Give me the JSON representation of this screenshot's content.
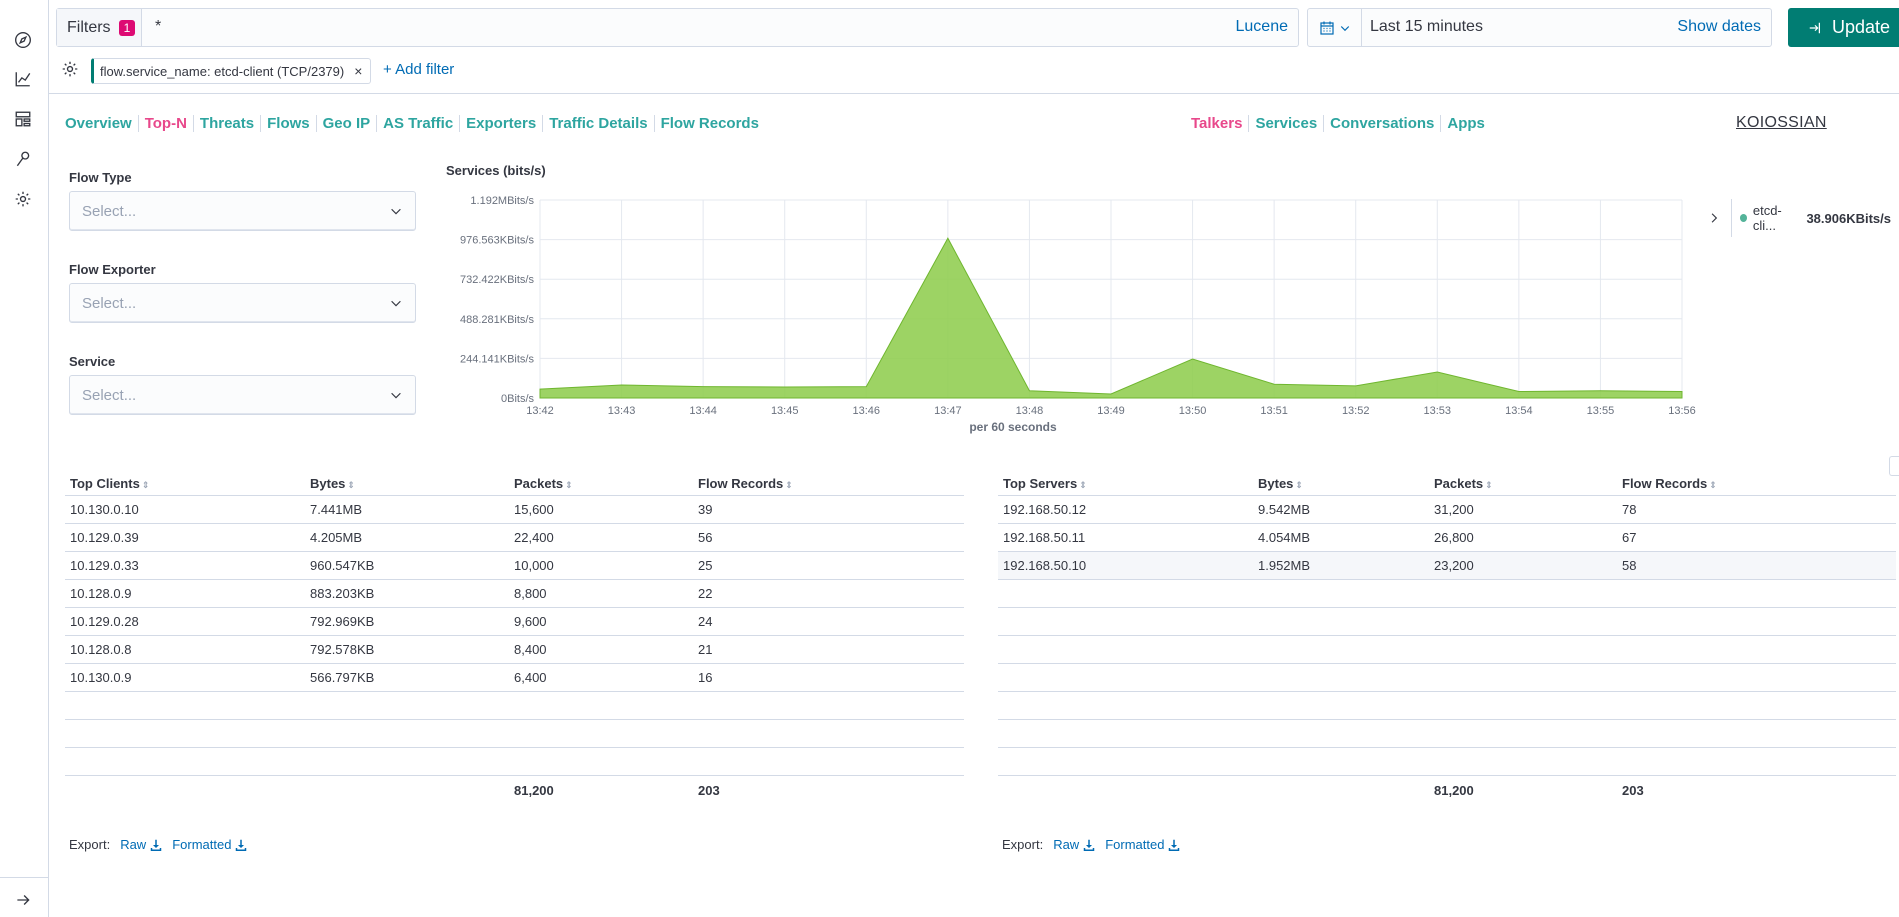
{
  "query_bar": {
    "filters_label": "Filters",
    "filters_count": "1",
    "query": "*",
    "language": "Lucene"
  },
  "date_picker": {
    "range": "Last 15 minutes",
    "show_dates": "Show dates",
    "update_label": "Update"
  },
  "active_filter": {
    "label": "flow.service_name: etcd-client (TCP/2379)",
    "remove": "×"
  },
  "add_filter_label": "+ Add filter",
  "nav_left": [
    "Overview",
    "Top-N",
    "Threats",
    "Flows",
    "Geo IP",
    "AS Traffic",
    "Exporters",
    "Traffic Details",
    "Flow Records"
  ],
  "nav_left_active": "Top-N",
  "nav_right": [
    "Talkers",
    "Services",
    "Conversations",
    "Apps"
  ],
  "nav_right_active": "Talkers",
  "brand": "KOIOSSIAN",
  "selects": [
    {
      "label": "Flow Type",
      "placeholder": "Select..."
    },
    {
      "label": "Flow Exporter",
      "placeholder": "Select..."
    },
    {
      "label": "Service",
      "placeholder": "Select..."
    }
  ],
  "chart_data": {
    "type": "area",
    "title": "Services (bits/s)",
    "xlabel": "per 60 seconds",
    "ylabel": "",
    "x": [
      "13:42",
      "13:43",
      "13:44",
      "13:45",
      "13:46",
      "13:47",
      "13:48",
      "13:49",
      "13:50",
      "13:51",
      "13:52",
      "13:53",
      "13:54",
      "13:55",
      "13:56"
    ],
    "y_ticks": [
      "0Bits/s",
      "244.141KBits/s",
      "488.281KBits/s",
      "732.422KBits/s",
      "976.563KBits/s",
      "1.192MBits/s"
    ],
    "y_tick_values": [
      0,
      244.141,
      488.281,
      732.422,
      976.563,
      1220.7
    ],
    "y_unit": "KBits/s",
    "ylim": [
      0,
      1220.7
    ],
    "series": [
      {
        "name": "etcd-cli...",
        "color": "#8fcd4f",
        "values": [
          55,
          80,
          70,
          68,
          70,
          985,
          45,
          25,
          240,
          85,
          75,
          160,
          40,
          45,
          40
        ]
      }
    ],
    "legend": {
      "label": "etcd-cli...",
      "value": "38.906KBits/s",
      "position": "right"
    },
    "grid": true
  },
  "clients_table": {
    "headers": [
      "Top Clients",
      "Bytes",
      "Packets",
      "Flow Records"
    ],
    "rows": [
      [
        "10.130.0.10",
        "7.441MB",
        "15,600",
        "39"
      ],
      [
        "10.129.0.39",
        "4.205MB",
        "22,400",
        "56"
      ],
      [
        "10.129.0.33",
        "960.547KB",
        "10,000",
        "25"
      ],
      [
        "10.128.0.9",
        "883.203KB",
        "8,800",
        "22"
      ],
      [
        "10.129.0.28",
        "792.969KB",
        "9,600",
        "24"
      ],
      [
        "10.128.0.8",
        "792.578KB",
        "8,400",
        "21"
      ],
      [
        "10.130.0.9",
        "566.797KB",
        "6,400",
        "16"
      ]
    ],
    "totals": [
      "",
      "",
      "81,200",
      "203"
    ]
  },
  "servers_table": {
    "headers": [
      "Top Servers",
      "Bytes",
      "Packets",
      "Flow Records"
    ],
    "rows": [
      [
        "192.168.50.12",
        "9.542MB",
        "31,200",
        "78"
      ],
      [
        "192.168.50.11",
        "4.054MB",
        "26,800",
        "67"
      ],
      [
        "192.168.50.10",
        "1.952MB",
        "23,200",
        "58"
      ]
    ],
    "totals": [
      "",
      "",
      "81,200",
      "203"
    ]
  },
  "export": {
    "label": "Export:",
    "raw": "Raw",
    "formatted": "Formatted"
  },
  "colors": {
    "accent": "#017d73",
    "link": "#006bb4",
    "nav": "#2ea5a0",
    "nav_active": "#e8488b",
    "series": "#8fcd4f"
  }
}
